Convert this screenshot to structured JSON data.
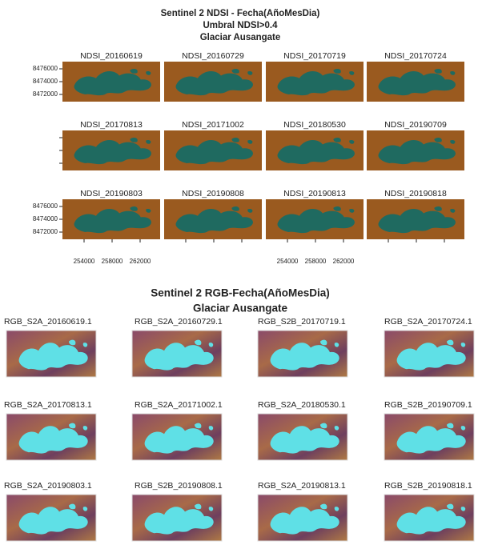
{
  "ndsi": {
    "title": [
      "Sentinel 2 NDSI - Fecha(AñoMesDia)",
      "Umbral NDSI>0.4",
      "Glaciar Ausangate"
    ],
    "panels": [
      "NDSI_20160619",
      "NDSI_20160729",
      "NDSI_20170719",
      "NDSI_20170724",
      "NDSI_20170813",
      "NDSI_20171002",
      "NDSI_20180530",
      "NDSI_20190709",
      "NDSI_20190803",
      "NDSI_20190808",
      "NDSI_20190813",
      "NDSI_20190818"
    ],
    "y_tick_labels": [
      "8476000",
      "8474000",
      "8472000"
    ],
    "x_tick_labels": [
      "254000",
      "258000",
      "262000"
    ]
  },
  "rgb": {
    "title": [
      "Sentinel 2 RGB-Fecha(AñoMesDia)",
      "Glaciar Ausangate"
    ],
    "panels": [
      "RGB_S2A_20160619.1",
      "RGB_S2A_20160729.1",
      "RGB_S2B_20170719.1",
      "RGB_S2A_20170724.1",
      "RGB_S2A_20170813.1",
      "RGB_S2A_20171002.1",
      "RGB_S2A_20180530.1",
      "RGB_S2B_20190709.1",
      "RGB_S2A_20190803.1",
      "RGB_S2B_20190808.1",
      "RGB_S2A_20190813.1",
      "RGB_S2B_20190818.1"
    ]
  }
}
